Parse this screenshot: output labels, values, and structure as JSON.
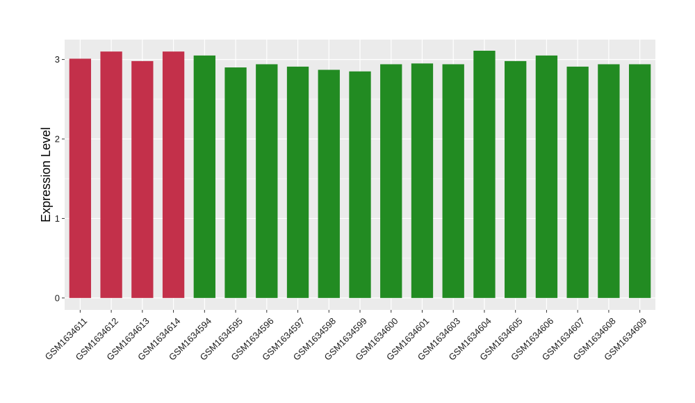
{
  "chart_data": {
    "type": "bar",
    "title": "",
    "xlabel": "",
    "ylabel": "Expression Level",
    "ylim": [
      -0.15,
      3.25
    ],
    "yticks": [
      0,
      1,
      2,
      3
    ],
    "grid": true,
    "legend": "none",
    "categories": [
      "GSM1634611",
      "GSM1634612",
      "GSM1634613",
      "GSM1634614",
      "GSM1634594",
      "GSM1634595",
      "GSM1634596",
      "GSM1634597",
      "GSM1634598",
      "GSM1634599",
      "GSM1634600",
      "GSM1634601",
      "GSM1634603",
      "GSM1634604",
      "GSM1634605",
      "GSM1634606",
      "GSM1634607",
      "GSM1634608",
      "GSM1634609"
    ],
    "values": [
      3.01,
      3.1,
      2.98,
      3.1,
      3.05,
      2.9,
      2.94,
      2.91,
      2.87,
      2.85,
      2.94,
      2.95,
      2.94,
      3.11,
      2.98,
      3.05,
      2.91,
      2.94,
      2.94
    ],
    "groups": [
      "red",
      "red",
      "red",
      "red",
      "green",
      "green",
      "green",
      "green",
      "green",
      "green",
      "green",
      "green",
      "green",
      "green",
      "green",
      "green",
      "green",
      "green",
      "green"
    ],
    "colors": {
      "red": "#C3304A",
      "green": "#228B22",
      "panel_background": "#EBEBEB",
      "grid": "#FFFFFF"
    }
  }
}
